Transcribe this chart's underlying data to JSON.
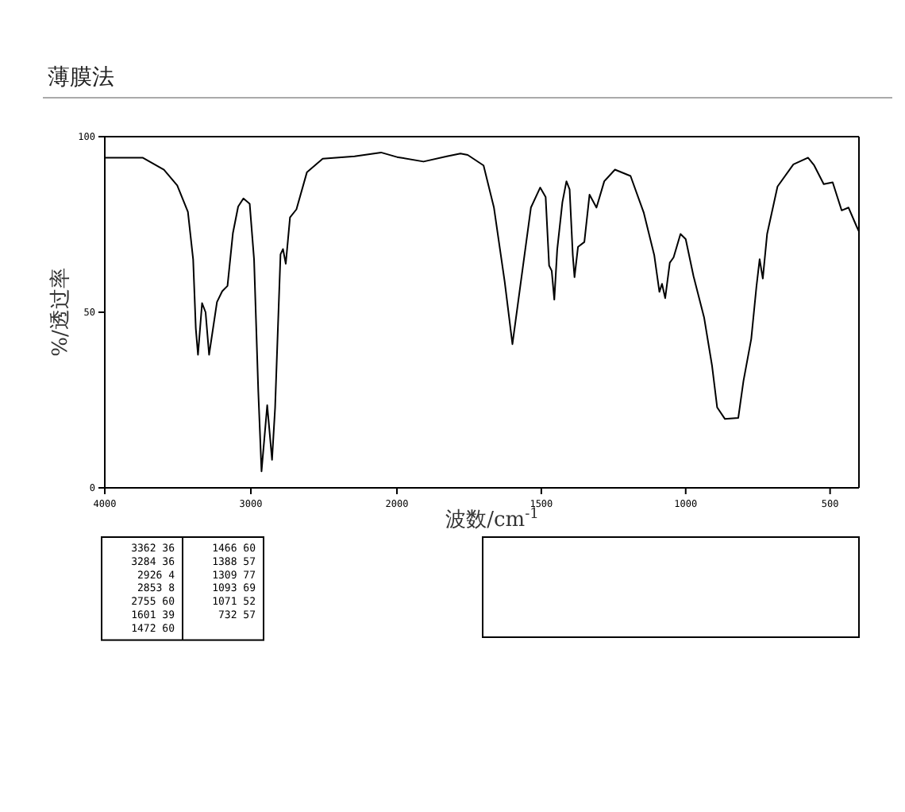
{
  "chart_data": [
    {
      "type": "line",
      "title": "薄膜法",
      "ylabel": "%/透过率",
      "xlim": [
        4000,
        2000
      ],
      "ylim": [
        0,
        100
      ],
      "xticks": [
        4000,
        3000,
        2000
      ],
      "yticks": [
        0,
        50,
        100
      ],
      "series": [
        {
          "color": "#000000",
          "x": [
            4000,
            3739,
            3595,
            3504,
            3431,
            3395,
            3377,
            3362,
            3334,
            3310,
            3286,
            3232,
            3196,
            3160,
            3123,
            3087,
            3051,
            3008,
            2978,
            2949,
            2927,
            2888,
            2855,
            2834,
            2797,
            2780,
            2761,
            2732,
            2688,
            2616,
            2508,
            2290,
            2109,
            2000
          ],
          "values": [
            94,
            94,
            90.6,
            86.1,
            78.6,
            65,
            45.4,
            37.9,
            52.6,
            50,
            37.9,
            52.9,
            56,
            57.5,
            72.5,
            80.1,
            82.4,
            80.9,
            65,
            27.3,
            4.7,
            23.5,
            8,
            22.8,
            66.5,
            68,
            63.8,
            77,
            79.3,
            89.9,
            93.7,
            94.4,
            95.5,
            94.2
          ]
        }
      ],
      "annotations": [
        "3362 36",
        "3284 36",
        "2926 4",
        "2853 8",
        "2755 60",
        "1601 39",
        "1472 60",
        "1466 60",
        "1388 57",
        "1309 77",
        "1093 69",
        "1071 52",
        "732 57"
      ]
    },
    {
      "type": "line",
      "xlabel": "波数/cm$^{-1}$",
      "xlim": [
        2000,
        400
      ],
      "ylim": [
        0,
        100
      ],
      "xticks": [
        1500,
        1000,
        500
      ],
      "tick_labels": "x",
      "series": [
        {
          "color": "#000000",
          "x": [
            2000,
            1908,
            1827,
            1780,
            1755,
            1700,
            1664,
            1627,
            1600,
            1573,
            1536,
            1504,
            1485,
            1473,
            1464,
            1455,
            1445,
            1427,
            1413,
            1402,
            1391,
            1385,
            1373,
            1351,
            1333,
            1309,
            1282,
            1245,
            1191,
            1145,
            1109,
            1091,
            1082,
            1071,
            1055,
            1042,
            1018,
            1000,
            973,
            936,
            909,
            891,
            864,
            818,
            800,
            773,
            755,
            744,
            733,
            718,
            682,
            627,
            576,
            555,
            522,
            491,
            460,
            436,
            409,
            400
          ],
          "values": [
            94.2,
            92.9,
            94.4,
            95.2,
            94.8,
            91.8,
            79.8,
            58.8,
            40.9,
            57.3,
            79.8,
            85.5,
            82.8,
            63.3,
            61.8,
            53.6,
            67.8,
            81.3,
            87.3,
            85,
            66.3,
            60,
            68.6,
            70,
            83.5,
            79.8,
            87.3,
            90.6,
            88.8,
            78.3,
            66.3,
            55.8,
            58.1,
            54,
            64.1,
            65.6,
            72.3,
            70.8,
            60.3,
            48.4,
            34.9,
            22.9,
            19.6,
            19.9,
            30.4,
            42.4,
            57.3,
            65.1,
            59.6,
            72.3,
            85.8,
            92.1,
            94,
            91.8,
            86.5,
            87,
            79,
            79.8,
            74.6,
            73
          ]
        }
      ]
    }
  ]
}
